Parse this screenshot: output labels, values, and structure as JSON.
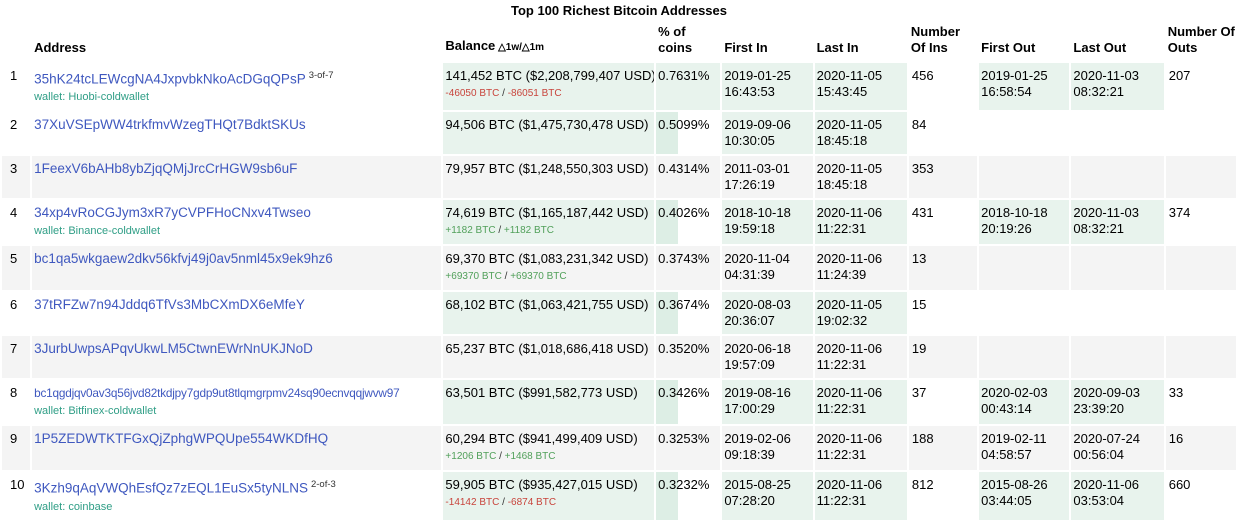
{
  "title": "Top 100 Richest Bitcoin Addresses",
  "colors": {
    "cell_green": "#e8f3ed",
    "pct_sliver_green": "#ddeee5",
    "row_stripe": "#f4f4f4",
    "address_link_blue": "#3f58bf",
    "wallet_link_teal": "#2f9e86",
    "delta_positive": "#51a05a",
    "delta_negative": "#c8443c"
  },
  "table": {
    "wallet_prefix": "wallet:",
    "columns": [
      {
        "key": "rank",
        "lines": [
          ""
        ]
      },
      {
        "key": "address",
        "lines": [
          "Address"
        ]
      },
      {
        "key": "balance",
        "lines": [
          "Balance"
        ],
        "suffix": "△1w/△1m"
      },
      {
        "key": "pct",
        "lines": [
          "% of",
          "coins"
        ]
      },
      {
        "key": "first-in",
        "lines": [
          "First In"
        ]
      },
      {
        "key": "last-in",
        "lines": [
          "Last In"
        ]
      },
      {
        "key": "ins",
        "lines": [
          "Number",
          "Of Ins"
        ]
      },
      {
        "key": "first-out",
        "lines": [
          "First Out"
        ]
      },
      {
        "key": "last-out",
        "lines": [
          "Last Out"
        ]
      },
      {
        "key": "outs",
        "lines": [
          "Number Of",
          "Outs"
        ]
      }
    ],
    "rows": [
      {
        "rank": "1",
        "address": "35hK24tcLEWcgNA4JxpvbkNkoAcDGqQPsP",
        "sup": "3-of-7",
        "wallet": "Huobi-coldwallet",
        "balance": "141,452 BTC ($2,208,799,407 USD)",
        "delta": "-46050 BTC / -86051 BTC",
        "pct": "0.7631%",
        "first_in": "2019-01-25 16:43:53",
        "last_in": "2020-11-05 15:43:45",
        "ins": "456",
        "first_out": "2019-01-25 16:58:54",
        "last_out": "2020-11-03 08:32:21",
        "outs": "207"
      },
      {
        "rank": "2",
        "address": "37XuVSEpWW4trkfmvWzegTHQt7BdktSKUs",
        "sup": "",
        "wallet": "",
        "balance": "94,506 BTC ($1,475,730,478 USD)",
        "delta": "",
        "pct": "0.5099%",
        "first_in": "2019-09-06 10:30:05",
        "last_in": "2020-11-05 18:45:18",
        "ins": "84",
        "first_out": "",
        "last_out": "",
        "outs": ""
      },
      {
        "rank": "3",
        "address": "1FeexV6bAHb8ybZjqQMjJrcCrHGW9sb6uF",
        "sup": "",
        "wallet": "",
        "balance": "79,957 BTC ($1,248,550,303 USD)",
        "delta": "",
        "pct": "0.4314%",
        "first_in": "2011-03-01 17:26:19",
        "last_in": "2020-11-05 18:45:18",
        "ins": "353",
        "first_out": "",
        "last_out": "",
        "outs": ""
      },
      {
        "rank": "4",
        "address": "34xp4vRoCGJym3xR7yCVPFHoCNxv4Twseo",
        "sup": "",
        "wallet": "Binance-coldwallet",
        "balance": "74,619 BTC ($1,165,187,442 USD)",
        "delta": "+1182 BTC / +1182 BTC",
        "pct": "0.4026%",
        "first_in": "2018-10-18 19:59:18",
        "last_in": "2020-11-06 11:22:31",
        "ins": "431",
        "first_out": "2018-10-18 20:19:26",
        "last_out": "2020-11-03 08:32:21",
        "outs": "374"
      },
      {
        "rank": "5",
        "address": "bc1qa5wkgaew2dkv56kfvj49j0av5nml45x9ek9hz6",
        "sup": "",
        "wallet": "",
        "balance": "69,370 BTC ($1,083,231,342 USD)",
        "delta": "+69370 BTC / +69370 BTC",
        "pct": "0.3743%",
        "first_in": "2020-11-04 04:31:39",
        "last_in": "2020-11-06 11:24:39",
        "ins": "13",
        "first_out": "",
        "last_out": "",
        "outs": ""
      },
      {
        "rank": "6",
        "address": "37tRFZw7n94Jddq6TfVs3MbCXmDX6eMfeY",
        "sup": "",
        "wallet": "",
        "balance": "68,102 BTC ($1,063,421,755 USD)",
        "delta": "",
        "pct": "0.3674%",
        "first_in": "2020-08-03 20:36:07",
        "last_in": "2020-11-05 19:02:32",
        "ins": "15",
        "first_out": "",
        "last_out": "",
        "outs": ""
      },
      {
        "rank": "7",
        "address": "3JurbUwpsAPqvUkwLM5CtwnEWrNnUKJNoD",
        "sup": "",
        "wallet": "",
        "balance": "65,237 BTC ($1,018,686,418 USD)",
        "delta": "",
        "pct": "0.3520%",
        "first_in": "2020-06-18 19:57:09",
        "last_in": "2020-11-06 11:22:31",
        "ins": "19",
        "first_out": "",
        "last_out": "",
        "outs": ""
      },
      {
        "rank": "8",
        "address": "bc1qgdjqv0av3q56jvd82tkdjpy7gdp9ut8tlqmgrpmv24sq90ecnvqqjwvw97",
        "sup": "",
        "wallet": "Bitfinex-coldwallet",
        "balance": "63,501 BTC ($991,582,773 USD)",
        "delta": "",
        "pct": "0.3426%",
        "first_in": "2019-08-16 17:00:29",
        "last_in": "2020-11-06 11:22:31",
        "ins": "37",
        "first_out": "2020-02-03 00:43:14",
        "last_out": "2020-09-03 23:39:20",
        "outs": "33"
      },
      {
        "rank": "9",
        "address": "1P5ZEDWTKTFGxQjZphgWPQUpe554WKDfHQ",
        "sup": "",
        "wallet": "",
        "balance": "60,294 BTC ($941,499,409 USD)",
        "delta": "+1206 BTC / +1468 BTC",
        "pct": "0.3253%",
        "first_in": "2019-02-06 09:18:39",
        "last_in": "2020-11-06 11:22:31",
        "ins": "188",
        "first_out": "2019-02-11 04:58:57",
        "last_out": "2020-07-24 00:56:04",
        "outs": "16"
      },
      {
        "rank": "10",
        "address": "3Kzh9qAqVWQhEsfQz7zEQL1EuSx5tyNLNS",
        "sup": "2-of-3",
        "wallet": "coinbase",
        "balance": "59,905 BTC ($935,427,015 USD)",
        "delta": "-14142 BTC / -6874 BTC",
        "pct": "0.3232%",
        "first_in": "2015-08-25 07:28:20",
        "last_in": "2020-11-06 11:22:31",
        "ins": "812",
        "first_out": "2015-08-26 03:44:05",
        "last_out": "2020-11-06 03:53:04",
        "outs": "660"
      }
    ]
  }
}
